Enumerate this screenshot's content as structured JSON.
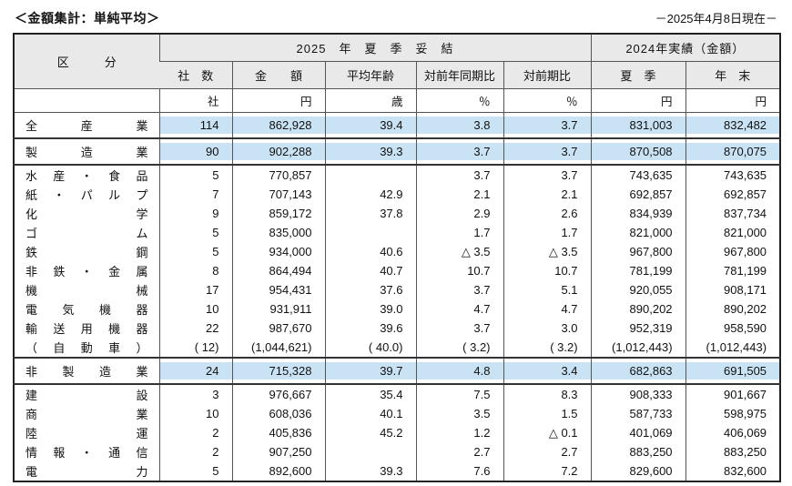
{
  "page": {
    "title": "＜金額集計：単純平均＞",
    "as_of": "－2025年4月8日現在－"
  },
  "table": {
    "category_header": "区　　　分",
    "group_2025": "2025　年　夏　季　妥　結",
    "group_2024": "2024年実績（金額）",
    "columns": [
      "社　数",
      "金　　額",
      "平均年齢",
      "対前年同期比",
      "対前期比",
      "夏　季",
      "年　末"
    ],
    "units": [
      "社",
      "円",
      "歳",
      "％",
      "％",
      "円",
      "円"
    ],
    "rows": [
      {
        "label": "全産業",
        "values": [
          "114",
          "862,928",
          "39.4",
          "3.8",
          "3.7",
          "831,003",
          "832,482"
        ],
        "highlight": true,
        "section_end": true
      },
      {
        "label": "製造業",
        "values": [
          "90",
          "902,288",
          "39.3",
          "3.7",
          "3.7",
          "870,508",
          "870,075"
        ],
        "highlight": true,
        "section_end": true
      },
      {
        "label": "水産・食品",
        "values": [
          "5",
          "770,857",
          "",
          "3.7",
          "3.7",
          "743,635",
          "743,635"
        ]
      },
      {
        "label": "紙・パルプ",
        "values": [
          "7",
          "707,143",
          "42.9",
          "2.1",
          "2.1",
          "692,857",
          "692,857"
        ]
      },
      {
        "label": "化学",
        "values": [
          "9",
          "859,172",
          "37.8",
          "2.9",
          "2.6",
          "834,939",
          "837,734"
        ]
      },
      {
        "label": "ゴム",
        "values": [
          "5",
          "835,000",
          "",
          "1.7",
          "1.7",
          "821,000",
          "821,000"
        ]
      },
      {
        "label": "鉄鋼",
        "values": [
          "5",
          "934,000",
          "40.6",
          "△ 3.5",
          "△ 3.5",
          "967,800",
          "967,800"
        ]
      },
      {
        "label": "非鉄・金属",
        "values": [
          "8",
          "864,494",
          "40.7",
          "10.7",
          "10.7",
          "781,199",
          "781,199"
        ]
      },
      {
        "label": "機械",
        "values": [
          "17",
          "954,431",
          "37.6",
          "3.7",
          "5.1",
          "920,055",
          "908,171"
        ]
      },
      {
        "label": "電気機器",
        "values": [
          "10",
          "931,911",
          "39.0",
          "4.7",
          "4.7",
          "890,202",
          "890,202"
        ]
      },
      {
        "label": "輸送用機器",
        "values": [
          "22",
          "987,670",
          "39.6",
          "3.7",
          "3.0",
          "952,319",
          "958,590"
        ]
      },
      {
        "label": "（自動車）",
        "values": [
          "( 12)",
          "(1,044,621)",
          "( 40.0)",
          "( 3.2)",
          "( 3.2)",
          "(1,012,443)",
          "(1,012,443)"
        ],
        "section_end": true
      },
      {
        "label": "非製造業",
        "values": [
          "24",
          "715,328",
          "39.7",
          "4.8",
          "3.4",
          "682,863",
          "691,505"
        ],
        "highlight": true,
        "section_end": true
      },
      {
        "label": "建設",
        "values": [
          "3",
          "976,667",
          "35.4",
          "7.5",
          "8.3",
          "908,333",
          "901,667"
        ]
      },
      {
        "label": "商業",
        "values": [
          "10",
          "608,036",
          "40.1",
          "3.5",
          "1.5",
          "587,733",
          "598,975"
        ]
      },
      {
        "label": "陸運",
        "values": [
          "2",
          "405,836",
          "45.2",
          "1.2",
          "△ 0.1",
          "401,069",
          "406,069"
        ]
      },
      {
        "label": "情報・通信",
        "values": [
          "2",
          "907,250",
          "",
          "2.7",
          "2.7",
          "883,250",
          "883,250"
        ]
      },
      {
        "label": "電力",
        "values": [
          "5",
          "892,600",
          "39.3",
          "7.6",
          "7.2",
          "829,600",
          "832,600"
        ]
      }
    ]
  }
}
